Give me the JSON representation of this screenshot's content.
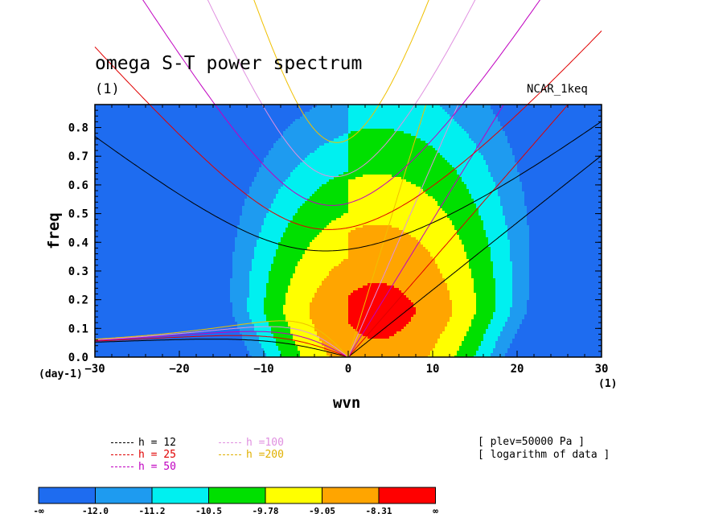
{
  "header": {
    "title": "omega S-T power spectrum",
    "units": "(1)",
    "model": "NCAR_1keq"
  },
  "axes": {
    "xlabel": "wvn",
    "ylabel": "freq",
    "x_units_left": "(day-1)",
    "x_units_right": "(1)"
  },
  "info": {
    "plev": "[ plev=50000 Pa ]",
    "transform": "[ logarithm of data ]"
  },
  "legend": {
    "items": [
      {
        "label": "h = 12",
        "color": "#000000"
      },
      {
        "label": "h = 25",
        "color": "#e00000"
      },
      {
        "label": "h = 50",
        "color": "#c000c0"
      },
      {
        "label": "h =100",
        "color": "#e090e0"
      },
      {
        "label": "h =200",
        "color": "#f0c000"
      }
    ]
  },
  "colorbar": {
    "labels": [
      "-∞",
      "-12.0",
      "-11.2",
      "-10.5",
      "-9.78",
      "-9.05",
      "-8.31",
      "∞"
    ],
    "colors": [
      "#1e6cf0",
      "#1e9bf0",
      "#00f0f0",
      "#00e000",
      "#ffff00",
      "#ffa500",
      "#ff0000"
    ]
  },
  "chart_data": {
    "type": "heatmap",
    "title": "omega S-T power spectrum",
    "xlabel": "wvn",
    "ylabel": "freq",
    "xlim": [
      -30,
      30
    ],
    "ylim": [
      0,
      0.88
    ],
    "x_ticks": [
      "−30",
      "−20",
      "−10",
      "0",
      "10",
      "20",
      "30"
    ],
    "x_tick_values": [
      -30,
      -20,
      -10,
      0,
      10,
      20,
      30
    ],
    "y_ticks": [
      "0.0",
      "0.1",
      "0.2",
      "0.3",
      "0.4",
      "0.5",
      "0.6",
      "0.7",
      "0.8"
    ],
    "y_tick_values": [
      0,
      0.1,
      0.2,
      0.3,
      0.4,
      0.5,
      0.6,
      0.7,
      0.8
    ],
    "contour_levels": [
      -12.0,
      -11.2,
      -10.5,
      -9.78,
      -9.05,
      -8.31
    ],
    "series": [
      {
        "name": "h = 12",
        "equivalent_depth": 12
      },
      {
        "name": "h = 25",
        "equivalent_depth": 25
      },
      {
        "name": "h = 50",
        "equivalent_depth": 50
      },
      {
        "name": "h =100",
        "equivalent_depth": 100
      },
      {
        "name": "h =200",
        "equivalent_depth": 200
      }
    ]
  }
}
